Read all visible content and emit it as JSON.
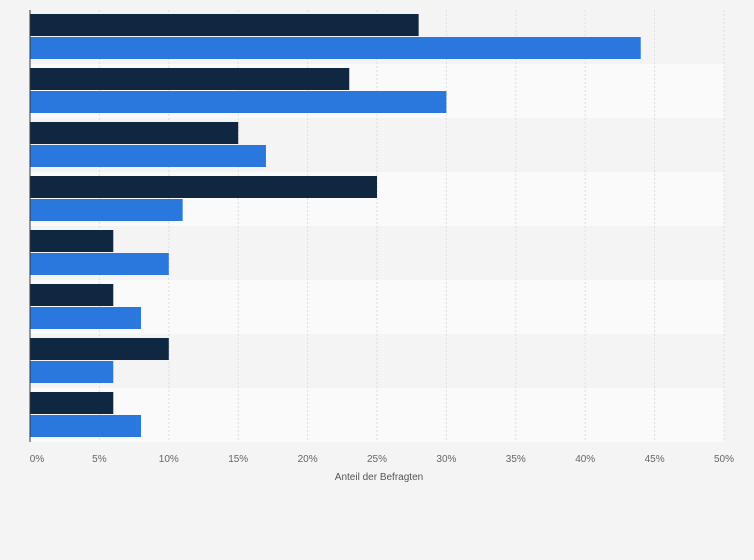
{
  "chart_data": {
    "type": "bar",
    "orientation": "horizontal",
    "categories": [
      "",
      "",
      "",
      "",
      "",
      "",
      "",
      ""
    ],
    "series": [
      {
        "values": [
          28,
          23,
          15,
          25,
          6,
          6,
          10,
          6
        ],
        "color": "#0f2741"
      },
      {
        "values": [
          44,
          30,
          17,
          11,
          10,
          8,
          6,
          8
        ],
        "color": "#2a78de"
      }
    ],
    "xlabel": "Anteil der Befragten",
    "ylabel": "",
    "xlim": [
      0,
      50
    ],
    "tick_values": [
      0,
      5,
      10,
      15,
      20,
      25,
      30,
      35,
      40,
      45,
      50
    ],
    "tick_labels": [
      "0%",
      "5%",
      "10%",
      "15%",
      "20%",
      "25%",
      "30%",
      "35%",
      "40%",
      "45%",
      "50%"
    ],
    "grid": true,
    "legend": "none"
  }
}
